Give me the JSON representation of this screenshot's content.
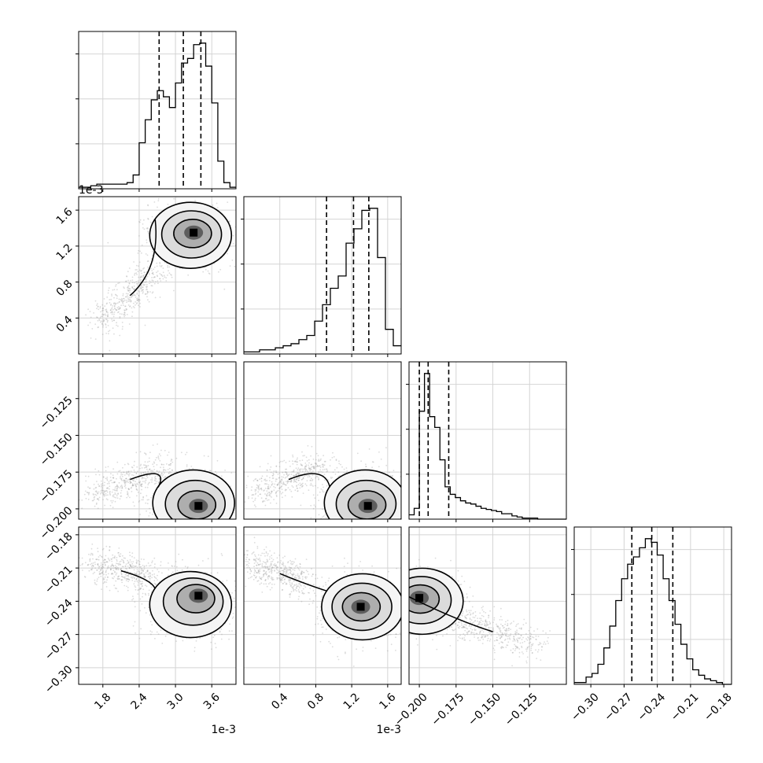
{
  "chart_data": {
    "type": "corner",
    "grid": true,
    "offset_labels": [
      {
        "id": "v0_x",
        "text": "1e-3"
      },
      {
        "id": "v1_x",
        "text": "1e-3"
      },
      {
        "id": "v1_y",
        "text": "1e-3"
      }
    ],
    "variables": [
      {
        "name": "",
        "range": [
          1.4,
          4.0
        ],
        "ticks": [
          1.8,
          2.4,
          3.0,
          3.6
        ],
        "tick_labels": [
          "1.8",
          "2.4",
          "3.0",
          "3.6"
        ],
        "quantiles": [
          2.73,
          3.13,
          3.42
        ]
      },
      {
        "name": "",
        "range": [
          0.0,
          1.75
        ],
        "ticks": [
          0.4,
          0.8,
          1.2,
          1.6
        ],
        "tick_labels": [
          "0.4",
          "0.8",
          "1.2",
          "1.6"
        ],
        "quantiles": [
          0.92,
          1.22,
          1.39
        ]
      },
      {
        "name": "",
        "range": [
          -0.207,
          -0.1
        ],
        "ticks": [
          -0.2,
          -0.175,
          -0.15,
          -0.125
        ],
        "tick_labels": [
          "−0.200",
          "−0.175",
          "−0.150",
          "−0.125"
        ],
        "quantiles": [
          -0.2,
          -0.194,
          -0.18
        ]
      },
      {
        "name": "",
        "range": [
          -0.315,
          -0.173
        ],
        "ticks": [
          -0.3,
          -0.27,
          -0.24,
          -0.21,
          -0.18
        ],
        "tick_labels": [
          "−0.30",
          "−0.27",
          "−0.24",
          "−0.21",
          "−0.18"
        ],
        "quantiles": [
          -0.263,
          -0.245,
          -0.226
        ]
      }
    ],
    "histograms": [
      {
        "var": 0,
        "edges": [
          1.4,
          1.5,
          1.6,
          1.7,
          1.8,
          1.9,
          2.0,
          2.1,
          2.2,
          2.3,
          2.4,
          2.5,
          2.6,
          2.7,
          2.8,
          2.9,
          3.0,
          3.1,
          3.2,
          3.3,
          3.4,
          3.5,
          3.6,
          3.7,
          3.8,
          3.9,
          4.0
        ],
        "counts": [
          1,
          1,
          2,
          3,
          3,
          3,
          3,
          3,
          4,
          9,
          30,
          45,
          58,
          64,
          60,
          53,
          69,
          82,
          85,
          94,
          95,
          80,
          56,
          18,
          4,
          1
        ]
      },
      {
        "var": 1,
        "edges": [
          0.0,
          0.0875,
          0.175,
          0.2625,
          0.35,
          0.4375,
          0.525,
          0.6125,
          0.7,
          0.7875,
          0.875,
          0.9625,
          1.05,
          1.1375,
          1.225,
          1.3125,
          1.4,
          1.4875,
          1.575,
          1.6625,
          1.75
        ],
        "counts": [
          1,
          1,
          2,
          2,
          3,
          4,
          5,
          7,
          9,
          16,
          24,
          32,
          38,
          54,
          61,
          70,
          71,
          47,
          12,
          4
        ]
      },
      {
        "var": 2,
        "edges": [
          -0.207,
          -0.2035,
          -0.2,
          -0.1965,
          -0.193,
          -0.1895,
          -0.186,
          -0.1825,
          -0.179,
          -0.1755,
          -0.172,
          -0.1685,
          -0.165,
          -0.1615,
          -0.158,
          -0.1545,
          -0.151,
          -0.1475,
          -0.144,
          -0.1405,
          -0.137,
          -0.1335,
          -0.13,
          -0.1265,
          -0.123,
          -0.1195,
          -0.116,
          -0.1125,
          -0.109,
          -0.1055,
          -0.102,
          -0.1
        ],
        "counts": [
          4,
          10,
          100,
          135,
          95,
          85,
          55,
          30,
          23,
          20,
          17,
          15,
          14,
          12,
          10,
          9,
          8,
          7,
          5,
          5,
          3,
          2,
          1,
          1,
          1,
          0,
          0,
          0,
          0,
          0,
          0
        ]
      },
      {
        "var": 3,
        "edges": [
          -0.315,
          -0.3096,
          -0.3043,
          -0.2989,
          -0.2936,
          -0.2882,
          -0.2829,
          -0.2775,
          -0.2722,
          -0.2668,
          -0.2615,
          -0.2561,
          -0.2508,
          -0.2454,
          -0.2401,
          -0.2347,
          -0.2294,
          -0.224,
          -0.2187,
          -0.2133,
          -0.208,
          -0.2026,
          -0.1973,
          -0.1919,
          -0.1866,
          -0.1812,
          -0.173
        ],
        "counts": [
          1,
          1,
          4,
          6,
          11,
          20,
          32,
          46,
          58,
          66,
          70,
          75,
          80,
          78,
          71,
          58,
          46,
          33,
          22,
          14,
          8,
          5,
          3,
          2,
          1,
          0
        ]
      }
    ],
    "pairs": [
      {
        "x": 0,
        "y": 1,
        "bulk_center": [
          3.25,
          1.32
        ],
        "tail_from": [
          2.75,
          0.95
        ],
        "tail_to": [
          1.75,
          0.35
        ],
        "peak": [
          3.3,
          1.35
        ]
      },
      {
        "x": 0,
        "y": 2,
        "bulk_center": [
          3.3,
          -0.196
        ],
        "tail_from": [
          2.9,
          -0.17
        ],
        "tail_to": [
          1.6,
          -0.19
        ],
        "peak": [
          3.38,
          -0.198
        ]
      },
      {
        "x": 1,
        "y": 2,
        "bulk_center": [
          1.35,
          -0.196
        ],
        "tail_from": [
          0.9,
          -0.17
        ],
        "tail_to": [
          0.1,
          -0.19
        ],
        "peak": [
          1.38,
          -0.198
        ]
      },
      {
        "x": 0,
        "y": 3,
        "bulk_center": [
          3.25,
          -0.243
        ],
        "tail_from": [
          2.6,
          -0.22
        ],
        "tail_to": [
          1.6,
          -0.205
        ],
        "peak": [
          3.38,
          -0.235
        ]
      },
      {
        "x": 1,
        "y": 3,
        "bulk_center": [
          1.32,
          -0.245
        ],
        "tail_from": [
          0.7,
          -0.225
        ],
        "tail_to": [
          0.1,
          -0.205
        ],
        "peak": [
          1.3,
          -0.245
        ]
      },
      {
        "x": 2,
        "y": 3,
        "bulk_center": [
          -0.198,
          -0.24
        ],
        "tail_from": [
          -0.18,
          -0.255
        ],
        "tail_to": [
          -0.12,
          -0.28
        ],
        "peak": [
          -0.2,
          -0.237
        ]
      }
    ]
  }
}
